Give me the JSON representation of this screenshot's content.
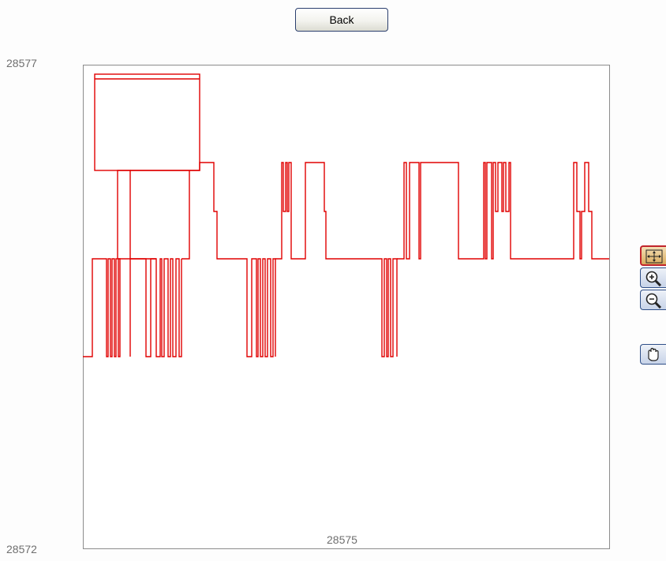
{
  "toolbar": {
    "back_label": "Back"
  },
  "axis_labels": {
    "y_max": "28577",
    "y_min": "28572",
    "x_mid": "28575"
  },
  "tools": [
    {
      "name": "fit-icon",
      "active": true
    },
    {
      "name": "zoom-in-icon",
      "active": false
    },
    {
      "name": "zoom-out-icon",
      "active": false
    },
    {
      "name": "pan-hand-icon",
      "active": false
    }
  ],
  "colors": {
    "trace": "#e00000",
    "frame": "#8c8c8c",
    "active_tool": "#c0242c"
  }
}
